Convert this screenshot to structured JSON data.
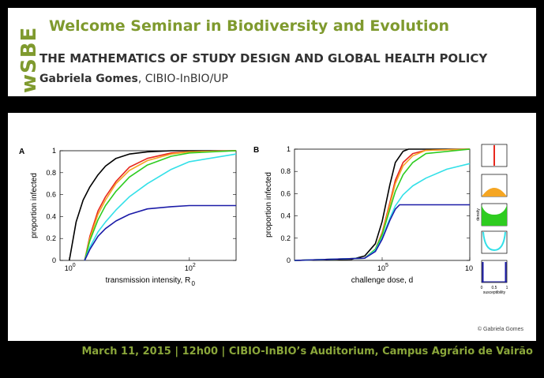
{
  "header": {
    "logo_text": "wSBE",
    "seminar_title": "Welcome Seminar in Biodiversity and Evolution",
    "talk_title": "THE MATHEMATICS OF STUDY DESIGN AND GLOBAL HEALTH POLICY",
    "speaker_name": "Gabriela Gomes",
    "speaker_affiliation": ", CIBIO-InBIO/UP"
  },
  "footer": {
    "text": "March 11, 2015 | 12h00 | CIBIO-InBIO’s Auditorium, Campus Agrário de Vairão"
  },
  "figure": {
    "copyright": "© Gabriela Gomes",
    "colors": {
      "black": "#000000",
      "red": "#e8281e",
      "orange": "#f5a623",
      "green": "#2ecc20",
      "cyan": "#33e0e8",
      "blue": "#1c1ca8"
    },
    "legend_axis_labels": [
      "0",
      "0.5",
      "1"
    ],
    "legend_xlabel": "susceptibility",
    "legend_ylabel": "density"
  },
  "chart_data": [
    {
      "type": "line",
      "panel_label": "A",
      "xlabel": "transmission intensity, R",
      "xlabel_subscript": "0",
      "ylabel": "proportion infected",
      "xscale": "log",
      "xlim": [
        0.7,
        600
      ],
      "ylim": [
        0,
        1
      ],
      "xticks": [
        {
          "value": 1,
          "label": "10",
          "exp": "0"
        },
        {
          "value": 100,
          "label": "10",
          "exp": "2"
        }
      ],
      "yticks": [
        {
          "value": 0,
          "label": "0"
        },
        {
          "value": 0.2,
          "label": "0.2"
        },
        {
          "value": 0.4,
          "label": "0.4"
        },
        {
          "value": 0.6,
          "label": "0.6"
        },
        {
          "value": 0.8,
          "label": "0.8"
        },
        {
          "value": 1,
          "label": "1"
        }
      ],
      "series": [
        {
          "color_key": "black",
          "x": [
            1,
            1.3,
            1.7,
            2.2,
            3,
            4,
            6,
            10,
            20,
            50,
            100,
            600
          ],
          "y": [
            0,
            0.35,
            0.55,
            0.67,
            0.78,
            0.86,
            0.93,
            0.97,
            0.99,
            1,
            1,
            1
          ]
        },
        {
          "color_key": "red",
          "x": [
            1.8,
            2.2,
            3,
            4,
            6,
            10,
            20,
            50,
            100,
            600
          ],
          "y": [
            0,
            0.22,
            0.45,
            0.58,
            0.72,
            0.85,
            0.93,
            0.98,
            0.99,
            1
          ]
        },
        {
          "color_key": "orange",
          "x": [
            1.8,
            2.2,
            3,
            4,
            6,
            10,
            20,
            50,
            100,
            600
          ],
          "y": [
            0,
            0.2,
            0.42,
            0.55,
            0.7,
            0.82,
            0.91,
            0.97,
            0.99,
            1
          ]
        },
        {
          "color_key": "green",
          "x": [
            1.8,
            2.2,
            3,
            4,
            6,
            10,
            20,
            50,
            100,
            600
          ],
          "y": [
            0,
            0.18,
            0.37,
            0.5,
            0.63,
            0.76,
            0.87,
            0.95,
            0.98,
            1
          ]
        },
        {
          "color_key": "cyan",
          "x": [
            1.8,
            2.2,
            3,
            4,
            6,
            10,
            20,
            50,
            100,
            600
          ],
          "y": [
            0,
            0.12,
            0.26,
            0.35,
            0.46,
            0.58,
            0.7,
            0.83,
            0.9,
            0.97
          ]
        },
        {
          "color_key": "blue",
          "x": [
            1.8,
            2.2,
            3,
            4,
            6,
            10,
            20,
            50,
            100,
            600
          ],
          "y": [
            0,
            0.1,
            0.22,
            0.29,
            0.36,
            0.42,
            0.47,
            0.49,
            0.5,
            0.5
          ]
        }
      ]
    },
    {
      "type": "line",
      "panel_label": "B",
      "xlabel": "challenge dose, d",
      "ylabel": "proportion infected",
      "xscale": "log",
      "xlim": [
        1000,
        10000000
      ],
      "ylim": [
        0,
        1
      ],
      "xticks": [
        {
          "value": 100000,
          "label": "10",
          "exp": "5"
        },
        {
          "value": 10000000,
          "label": "10",
          "exp": ""
        }
      ],
      "yticks": [
        {
          "value": 0,
          "label": "0"
        },
        {
          "value": 0.2,
          "label": "0.2"
        },
        {
          "value": 0.4,
          "label": "0.4"
        },
        {
          "value": 0.6,
          "label": "0.6"
        },
        {
          "value": 0.8,
          "label": "0.8"
        },
        {
          "value": 1,
          "label": "1"
        }
      ],
      "series": [
        {
          "color_key": "black",
          "x": [
            1000,
            20000,
            40000,
            70000,
            100000,
            150000,
            200000,
            300000,
            400000,
            10000000
          ],
          "y": [
            0,
            0.01,
            0.04,
            0.15,
            0.35,
            0.68,
            0.88,
            0.98,
            1,
            1
          ]
        },
        {
          "color_key": "red",
          "x": [
            1000,
            40000,
            70000,
            100000,
            150000,
            200000,
            300000,
            500000,
            1000000,
            10000000
          ],
          "y": [
            0,
            0.02,
            0.1,
            0.25,
            0.52,
            0.72,
            0.88,
            0.96,
            0.99,
            1
          ]
        },
        {
          "color_key": "orange",
          "x": [
            1000,
            40000,
            70000,
            100000,
            150000,
            200000,
            300000,
            500000,
            1000000,
            10000000
          ],
          "y": [
            0,
            0.02,
            0.1,
            0.24,
            0.5,
            0.69,
            0.85,
            0.94,
            0.99,
            1
          ]
        },
        {
          "color_key": "green",
          "x": [
            1000,
            40000,
            70000,
            100000,
            150000,
            200000,
            300000,
            500000,
            1000000,
            10000000
          ],
          "y": [
            0,
            0.02,
            0.1,
            0.23,
            0.46,
            0.62,
            0.77,
            0.88,
            0.96,
            1
          ]
        },
        {
          "color_key": "cyan",
          "x": [
            1000,
            40000,
            70000,
            100000,
            150000,
            200000,
            300000,
            500000,
            1000000,
            3000000,
            10000000
          ],
          "y": [
            0,
            0.02,
            0.09,
            0.2,
            0.38,
            0.49,
            0.59,
            0.67,
            0.74,
            0.82,
            0.87
          ]
        },
        {
          "color_key": "blue",
          "x": [
            1000,
            40000,
            70000,
            100000,
            150000,
            200000,
            250000,
            10000000
          ],
          "y": [
            0,
            0.02,
            0.08,
            0.19,
            0.36,
            0.46,
            0.5,
            0.5
          ]
        }
      ]
    }
  ]
}
